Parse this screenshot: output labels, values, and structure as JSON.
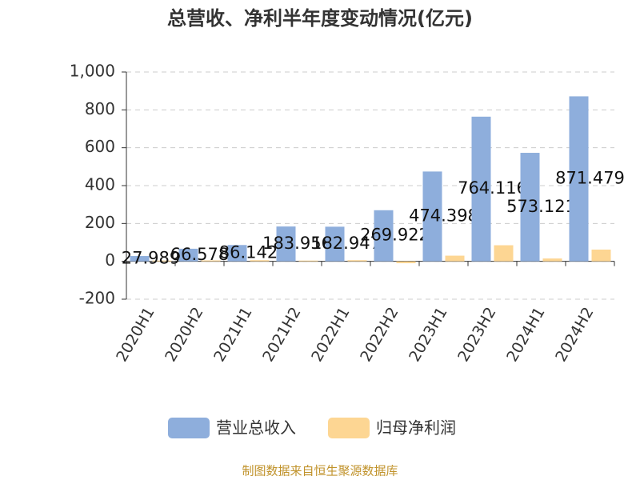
{
  "chart_data": {
    "type": "bar",
    "title": "总营收、净利半年度变动情况(亿元)",
    "categories": [
      "2020H1",
      "2020H2",
      "2021H1",
      "2021H2",
      "2022H1",
      "2022H2",
      "2023H1",
      "2023H2",
      "2024H1",
      "2024H2"
    ],
    "series": [
      {
        "name": "营业总收入",
        "color": "#8eaedc",
        "values": [
          27.989,
          66.578,
          86.142,
          183.956,
          182.947,
          269.922,
          474.398,
          764.116,
          573.121,
          871.479
        ]
      },
      {
        "name": "归母净利润",
        "color": "#fdd693",
        "values": [
          4,
          5,
          6,
          4,
          6,
          -10,
          30,
          85,
          15,
          62
        ]
      }
    ],
    "ylim": [
      -200,
      1000
    ],
    "yticks": [
      -200,
      0,
      200,
      400,
      600,
      800,
      {
        "value": 1000,
        "label": "1,000"
      }
    ],
    "grid": true,
    "source": "制图数据来自恒生聚源数据库"
  }
}
